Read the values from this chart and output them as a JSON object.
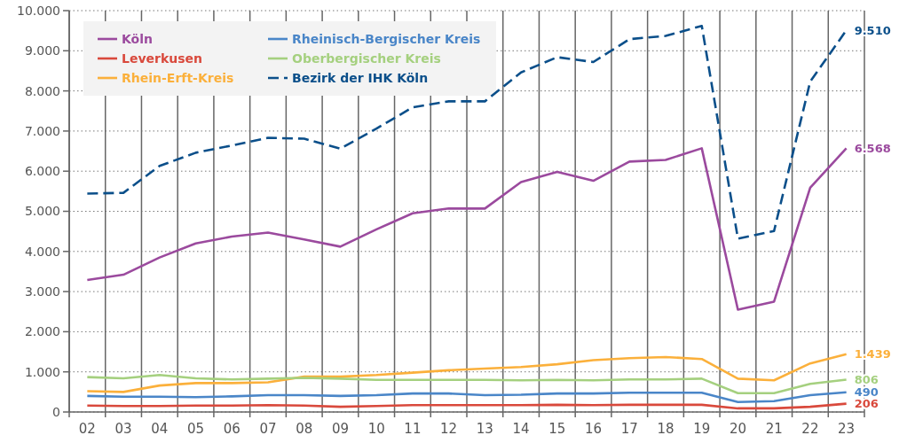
{
  "chart_data": {
    "type": "line",
    "categories": [
      "02",
      "03",
      "04",
      "05",
      "06",
      "07",
      "08",
      "09",
      "10",
      "11",
      "12",
      "13",
      "14",
      "15",
      "16",
      "17",
      "18",
      "19",
      "20",
      "21",
      "22",
      "23"
    ],
    "ylim": [
      0,
      10000
    ],
    "yticks": [
      {
        "value": 0,
        "label": "0"
      },
      {
        "value": 1000,
        "label": "1.000"
      },
      {
        "value": 2000,
        "label": "2.000"
      },
      {
        "value": 3000,
        "label": "3.000"
      },
      {
        "value": 4000,
        "label": "4.000"
      },
      {
        "value": 5000,
        "label": "5.000"
      },
      {
        "value": 6000,
        "label": "6.000"
      },
      {
        "value": 7000,
        "label": "7.000"
      },
      {
        "value": 8000,
        "label": "8.000"
      },
      {
        "value": 9000,
        "label": "9.000"
      },
      {
        "value": 10000,
        "label": "10.000"
      }
    ],
    "grid": true,
    "legend": "top left",
    "line_style": "solid",
    "series": [
      {
        "name": "Köln",
        "color": "#9b4a9e",
        "values": [
          3290,
          3420,
          3850,
          4200,
          4370,
          4470,
          4300,
          4120,
          4550,
          4950,
          5070,
          5070,
          5730,
          5980,
          5760,
          6240,
          6280,
          6570,
          2550,
          2750,
          5590,
          6568
        ],
        "value_labels": [
          null,
          null,
          null,
          null,
          null,
          null,
          null,
          null,
          null,
          null,
          null,
          null,
          null,
          null,
          null,
          null,
          null,
          null,
          null,
          null,
          null,
          "6.568"
        ]
      },
      {
        "name": "Leverkusen",
        "color": "#d9493c",
        "values": [
          160,
          150,
          150,
          160,
          160,
          170,
          160,
          130,
          150,
          170,
          170,
          170,
          170,
          180,
          170,
          180,
          180,
          180,
          90,
          90,
          130,
          206
        ],
        "value_labels": [
          null,
          null,
          null,
          null,
          null,
          null,
          null,
          null,
          null,
          null,
          null,
          null,
          null,
          null,
          null,
          null,
          null,
          null,
          null,
          null,
          null,
          "206"
        ]
      },
      {
        "name": "Rhein-Erft-Kreis",
        "color": "#fbb03b",
        "values": [
          520,
          500,
          660,
          720,
          720,
          740,
          880,
          880,
          920,
          980,
          1040,
          1080,
          1120,
          1190,
          1290,
          1340,
          1370,
          1320,
          830,
          790,
          1210,
          1439
        ],
        "value_labels": [
          null,
          null,
          null,
          null,
          null,
          null,
          null,
          null,
          null,
          null,
          null,
          null,
          null,
          null,
          null,
          null,
          null,
          null,
          null,
          null,
          null,
          "1.439"
        ]
      },
      {
        "name": "Rheinisch-Bergischer Kreis",
        "color": "#4a86c8",
        "values": [
          400,
          380,
          380,
          370,
          390,
          420,
          420,
          400,
          420,
          460,
          460,
          420,
          430,
          460,
          460,
          480,
          480,
          480,
          250,
          270,
          420,
          490
        ],
        "value_labels": [
          null,
          null,
          null,
          null,
          null,
          null,
          null,
          null,
          null,
          null,
          null,
          null,
          null,
          null,
          null,
          null,
          null,
          null,
          null,
          null,
          null,
          "490"
        ]
      },
      {
        "name": "Oberbergischer Kreis",
        "color": "#a5d07f",
        "values": [
          870,
          840,
          920,
          840,
          810,
          830,
          850,
          830,
          800,
          800,
          800,
          800,
          790,
          800,
          790,
          810,
          810,
          830,
          470,
          470,
          700,
          806
        ],
        "value_labels": [
          null,
          null,
          null,
          null,
          null,
          null,
          null,
          null,
          null,
          null,
          null,
          null,
          null,
          null,
          null,
          null,
          null,
          null,
          null,
          null,
          null,
          "806"
        ]
      },
      {
        "name": "Bezirk der IHK Köln",
        "color": "#0b4f8a",
        "line_style": "dashed",
        "values": [
          5440,
          5460,
          6130,
          6460,
          6640,
          6830,
          6810,
          6560,
          7060,
          7590,
          7740,
          7740,
          8460,
          8840,
          8720,
          9290,
          9370,
          9620,
          4320,
          4510,
          8230,
          9510
        ],
        "value_labels": [
          null,
          null,
          null,
          null,
          null,
          null,
          null,
          null,
          null,
          null,
          null,
          null,
          null,
          null,
          null,
          null,
          null,
          null,
          null,
          null,
          null,
          "9.510"
        ]
      }
    ]
  }
}
